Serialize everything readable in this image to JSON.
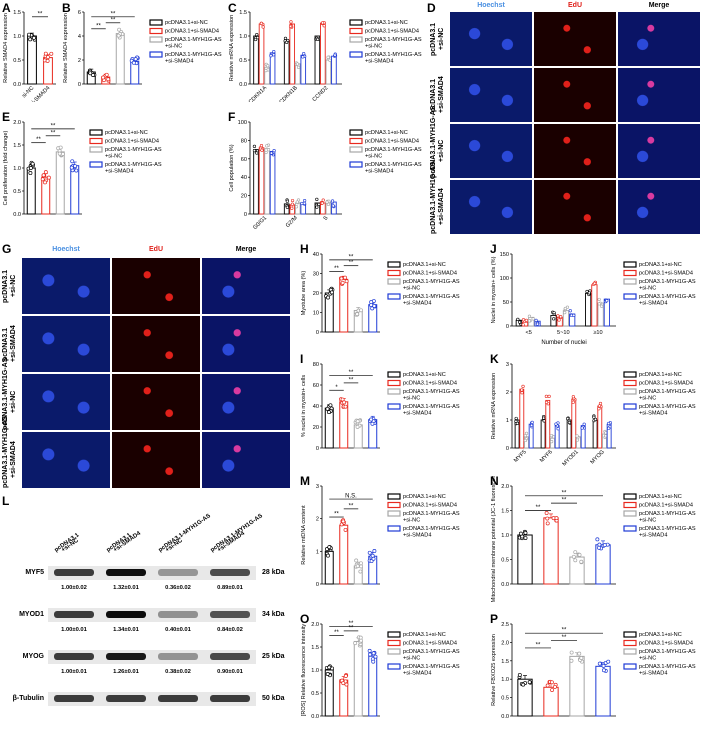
{
  "panel_labels": [
    "A",
    "B",
    "C",
    "D",
    "E",
    "F",
    "G",
    "H",
    "I",
    "J",
    "K",
    "L",
    "M",
    "N",
    "O",
    "P"
  ],
  "colors": {
    "black": "#000000",
    "red": "#e8281e",
    "gray": "#a6a6a6",
    "blue": "#1f3bd6",
    "hoechst": "#4a90e2",
    "edu": "#e0201a"
  },
  "legend4": [
    "pcDNA3.1+si-NC",
    "pcDNA3.1+si-SMAD4",
    "pcDNA3.1-MYH1G-AS\n+si-NC",
    "pcDNA3.1-MYH1G-AS\n+si-SMAD4"
  ],
  "microscopy": {
    "columns": [
      "Hoechst",
      "EdU",
      "Merge"
    ],
    "rows": [
      "pcDNA3.1\n+si-NC",
      "pcDNA3.1\n+si-SMAD4",
      "pcDNA3.1-MYH1G-AS\n+si-NC",
      "pcDNA3.1-MYH1G-AS\n+si-SMAD4"
    ]
  },
  "western": {
    "lanes": [
      "pcDNA3.1\n+si-NC",
      "pcDNA3.1\n+si-SMAD4",
      "pcDNA3.1-MYH1G-AS\n+si-NC",
      "pcDNA3.1-MYH1G-AS\n+si-SMAD4"
    ],
    "proteins": [
      {
        "name": "MYF5",
        "size": "28 kDa",
        "values": [
          "1.00±0.02",
          "1.32±0.01",
          "0.36±0.02",
          "0.89±0.01"
        ]
      },
      {
        "name": "MYOD1",
        "size": "34 kDa",
        "values": [
          "1.00±0.01",
          "1.34±0.01",
          "0.40±0.01",
          "0.84±0.02"
        ]
      },
      {
        "name": "MYOG",
        "size": "25 kDa",
        "values": [
          "1.00±0.01",
          "1.26±0.01",
          "0.38±0.02",
          "0.90±0.01"
        ]
      },
      {
        "name": "β-Tubulin",
        "size": "50 kDa",
        "values": []
      }
    ]
  },
  "chart_data": [
    {
      "id": "A",
      "type": "bar",
      "categories": [
        "si-NC",
        "si-SMAD4"
      ],
      "values": [
        1.0,
        0.55
      ],
      "ylabel": "Relative SMAD4 expression",
      "ylim": [
        0,
        1.5
      ],
      "yticks": [
        "0.0",
        "0.5",
        "1.0",
        "1.5"
      ],
      "sig": [
        {
          "from": 0,
          "to": 1,
          "text": "**",
          "level": 1.4
        }
      ]
    },
    {
      "id": "B",
      "type": "bar",
      "categories": [
        "",
        "",
        "",
        ""
      ],
      "values": [
        1.0,
        0.58,
        4.2,
        1.9
      ],
      "ylabel": "Relative SMAD4 expression",
      "ylim": [
        0,
        6
      ],
      "yticks": [
        "0",
        "2",
        "4",
        "6"
      ],
      "sig": [
        {
          "from": 0,
          "to": 1,
          "text": "**",
          "level": 4.6
        },
        {
          "from": 1,
          "to": 2,
          "text": "**",
          "level": 5.1
        },
        {
          "from": 0,
          "to": 3,
          "text": "**",
          "level": 5.6
        }
      ]
    },
    {
      "id": "C",
      "type": "bar",
      "categories": [
        "CDKN1A",
        "CDKN1B",
        "CCND2"
      ],
      "series": [
        {
          "values": [
            1.0,
            0.9,
            1.0
          ]
        },
        {
          "values": [
            1.25,
            1.25,
            1.27
          ]
        },
        {
          "values": [
            0.35,
            0.42,
            0.5
          ]
        },
        {
          "values": [
            0.65,
            0.6,
            0.58
          ]
        }
      ],
      "ylabel": "Relative mRNA expression",
      "ylim": [
        0,
        1.5
      ],
      "yticks": [
        "0.0",
        "0.5",
        "1.0",
        "1.5"
      ]
    },
    {
      "id": "E",
      "type": "bar",
      "categories": [
        "",
        "",
        "",
        ""
      ],
      "values": [
        1.0,
        0.8,
        1.35,
        1.05
      ],
      "ylabel": "Cell proliferation (fold change)",
      "ylim": [
        0,
        2.0
      ],
      "yticks": [
        "0.0",
        "0.5",
        "1.0",
        "1.5",
        "2.0"
      ],
      "sig": [
        {
          "from": 0,
          "to": 1,
          "text": "**",
          "level": 1.55
        },
        {
          "from": 1,
          "to": 2,
          "text": "**",
          "level": 1.7
        },
        {
          "from": 0,
          "to": 3,
          "text": "**",
          "level": 1.85
        }
      ]
    },
    {
      "id": "F",
      "type": "bar",
      "categories": [
        "G0/G1",
        "G2/M",
        "S"
      ],
      "series": [
        {
          "values": [
            70,
            11,
            12
          ]
        },
        {
          "values": [
            72,
            10,
            12
          ]
        },
        {
          "values": [
            71,
            12,
            13
          ]
        },
        {
          "values": [
            68,
            12,
            13
          ]
        }
      ],
      "ylabel": "Cell population (%)",
      "ylim": [
        0,
        100
      ],
      "yticks": [
        "0",
        "20",
        "40",
        "60",
        "80",
        "100"
      ]
    },
    {
      "id": "H",
      "type": "bar",
      "categories": [
        "",
        "",
        "",
        ""
      ],
      "values": [
        20,
        27,
        11,
        14
      ],
      "ylabel": "Myotube area (%)",
      "ylim": [
        0,
        40
      ],
      "yticks": [
        "0",
        "10",
        "20",
        "30",
        "40"
      ],
      "sig": [
        {
          "from": 0,
          "to": 1,
          "text": "**",
          "level": 31
        },
        {
          "from": 1,
          "to": 2,
          "text": "**",
          "level": 34
        },
        {
          "from": 0,
          "to": 3,
          "text": "**",
          "level": 37
        }
      ]
    },
    {
      "id": "I",
      "type": "bar",
      "categories": [
        "",
        "",
        "",
        ""
      ],
      "values": [
        38,
        44,
        22,
        27
      ],
      "ylabel": "% nuclei in myosin+ cells",
      "ylim": [
        0,
        80
      ],
      "yticks": [
        "0",
        "20",
        "40",
        "60",
        "80"
      ],
      "sig": [
        {
          "from": 0,
          "to": 1,
          "text": "*",
          "level": 55
        },
        {
          "from": 1,
          "to": 2,
          "text": "**",
          "level": 62
        },
        {
          "from": 0,
          "to": 3,
          "text": "**",
          "level": 69
        }
      ]
    },
    {
      "id": "J",
      "type": "bar",
      "categories": [
        "<5",
        "5~10",
        "≥10"
      ],
      "series": [
        {
          "values": [
            12,
            22,
            68
          ]
        },
        {
          "values": [
            8,
            18,
            86
          ]
        },
        {
          "values": [
            18,
            32,
            48
          ]
        },
        {
          "values": [
            10,
            25,
            56
          ]
        }
      ],
      "xlabel": "Number of nuclei",
      "ylabel": "Nuclei in myosin+ cells (%)",
      "ylim": [
        0,
        150
      ],
      "yticks": [
        "0",
        "50",
        "100",
        "150"
      ]
    },
    {
      "id": "K",
      "type": "bar",
      "categories": [
        "MYF5",
        "MYF6",
        "MYOD1",
        "MYOG"
      ],
      "series": [
        {
          "values": [
            1.0,
            1.0,
            1.0,
            1.0
          ]
        },
        {
          "values": [
            2.1,
            1.7,
            1.75,
            1.5
          ]
        },
        {
          "values": [
            0.4,
            0.35,
            0.4,
            0.5
          ]
        },
        {
          "values": [
            0.85,
            0.8,
            0.8,
            0.85
          ]
        }
      ],
      "ylabel": "Relative mRNA expression",
      "ylim": [
        0,
        3
      ],
      "yticks": [
        "0",
        "1",
        "2",
        "3"
      ]
    },
    {
      "id": "M",
      "type": "bar",
      "categories": [
        "",
        "",
        "",
        ""
      ],
      "values": [
        1.0,
        1.8,
        0.55,
        0.85
      ],
      "ylabel": "Relative mtDNA content",
      "ylim": [
        0,
        3
      ],
      "yticks": [
        "0",
        "1",
        "2",
        "3"
      ],
      "sig": [
        {
          "from": 0,
          "to": 1,
          "text": "**",
          "level": 2.05
        },
        {
          "from": 1,
          "to": 2,
          "text": "**",
          "level": 2.3
        },
        {
          "from": 0,
          "to": 3,
          "text": "N.S.",
          "level": 2.6
        }
      ]
    },
    {
      "id": "N",
      "type": "bar",
      "categories": [
        "",
        "",
        "",
        ""
      ],
      "values": [
        1.0,
        1.35,
        0.55,
        0.8
      ],
      "ylabel": "Mitochondrial membrane potential (JC-1 fluorescence)",
      "ylim": [
        0,
        2.0
      ],
      "yticks": [
        "0.0",
        "0.5",
        "1.0",
        "1.5",
        "2.0"
      ],
      "sig": [
        {
          "from": 0,
          "to": 1,
          "text": "**",
          "level": 1.5
        },
        {
          "from": 1,
          "to": 2,
          "text": "**",
          "level": 1.65
        },
        {
          "from": 0,
          "to": 3,
          "text": "**",
          "level": 1.8
        }
      ]
    },
    {
      "id": "O",
      "type": "bar",
      "categories": [
        "",
        "",
        "",
        ""
      ],
      "values": [
        1.0,
        0.78,
        1.62,
        1.3
      ],
      "ylabel": "[ROS] Relative fluorescence intensity",
      "ylim": [
        0,
        2.0
      ],
      "yticks": [
        "0.0",
        "0.5",
        "1.0",
        "1.5",
        "2.0"
      ],
      "sig": [
        {
          "from": 0,
          "to": 1,
          "text": "**",
          "level": 1.75
        },
        {
          "from": 1,
          "to": 2,
          "text": "**",
          "level": 1.85
        },
        {
          "from": 0,
          "to": 3,
          "text": "**",
          "level": 1.95
        }
      ]
    },
    {
      "id": "P",
      "type": "bar",
      "categories": [
        "",
        "",
        "",
        ""
      ],
      "values": [
        1.0,
        0.78,
        1.62,
        1.35
      ],
      "ylabel": "Relative FBXO25 expression",
      "ylim": [
        0,
        2.5
      ],
      "yticks": [
        "0.0",
        "0.5",
        "1.0",
        "1.5",
        "2.0",
        "2.5"
      ],
      "sig": [
        {
          "from": 0,
          "to": 1,
          "text": "**",
          "level": 1.85
        },
        {
          "from": 1,
          "to": 2,
          "text": "**",
          "level": 2.05
        },
        {
          "from": 0,
          "to": 3,
          "text": "**",
          "level": 2.25
        }
      ]
    }
  ]
}
